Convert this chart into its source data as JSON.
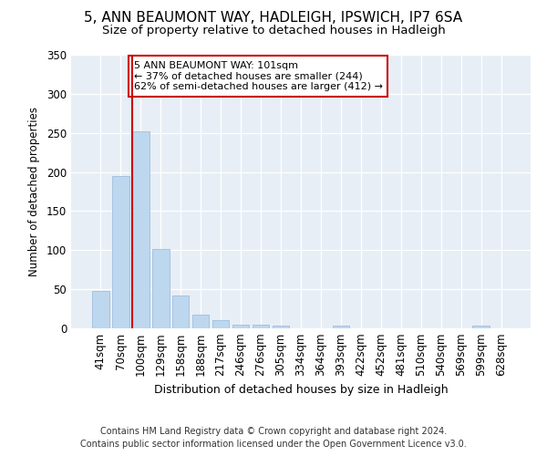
{
  "title_line1": "5, ANN BEAUMONT WAY, HADLEIGH, IPSWICH, IP7 6SA",
  "title_line2": "Size of property relative to detached houses in Hadleigh",
  "xlabel": "Distribution of detached houses by size in Hadleigh",
  "ylabel": "Number of detached properties",
  "categories": [
    "41sqm",
    "70sqm",
    "100sqm",
    "129sqm",
    "158sqm",
    "188sqm",
    "217sqm",
    "246sqm",
    "276sqm",
    "305sqm",
    "334sqm",
    "364sqm",
    "393sqm",
    "422sqm",
    "452sqm",
    "481sqm",
    "510sqm",
    "540sqm",
    "569sqm",
    "599sqm",
    "628sqm"
  ],
  "values": [
    48,
    195,
    252,
    101,
    42,
    18,
    10,
    5,
    5,
    4,
    0,
    0,
    3,
    0,
    0,
    0,
    0,
    0,
    0,
    3,
    0
  ],
  "bar_color": "#bdd7ee",
  "bar_edge_color": "#9dbfe0",
  "vline_color": "#cc0000",
  "annotation_text": "5 ANN BEAUMONT WAY: 101sqm\n← 37% of detached houses are smaller (244)\n62% of semi-detached houses are larger (412) →",
  "annotation_box_color": "#ffffff",
  "annotation_box_edge": "#cc0000",
  "ylim": [
    0,
    350
  ],
  "yticks": [
    0,
    50,
    100,
    150,
    200,
    250,
    300,
    350
  ],
  "footer1": "Contains HM Land Registry data © Crown copyright and database right 2024.",
  "footer2": "Contains public sector information licensed under the Open Government Licence v3.0.",
  "bg_color": "#ffffff",
  "plot_bg_color": "#e8eef5",
  "title1_fontsize": 11,
  "title2_fontsize": 9.5
}
